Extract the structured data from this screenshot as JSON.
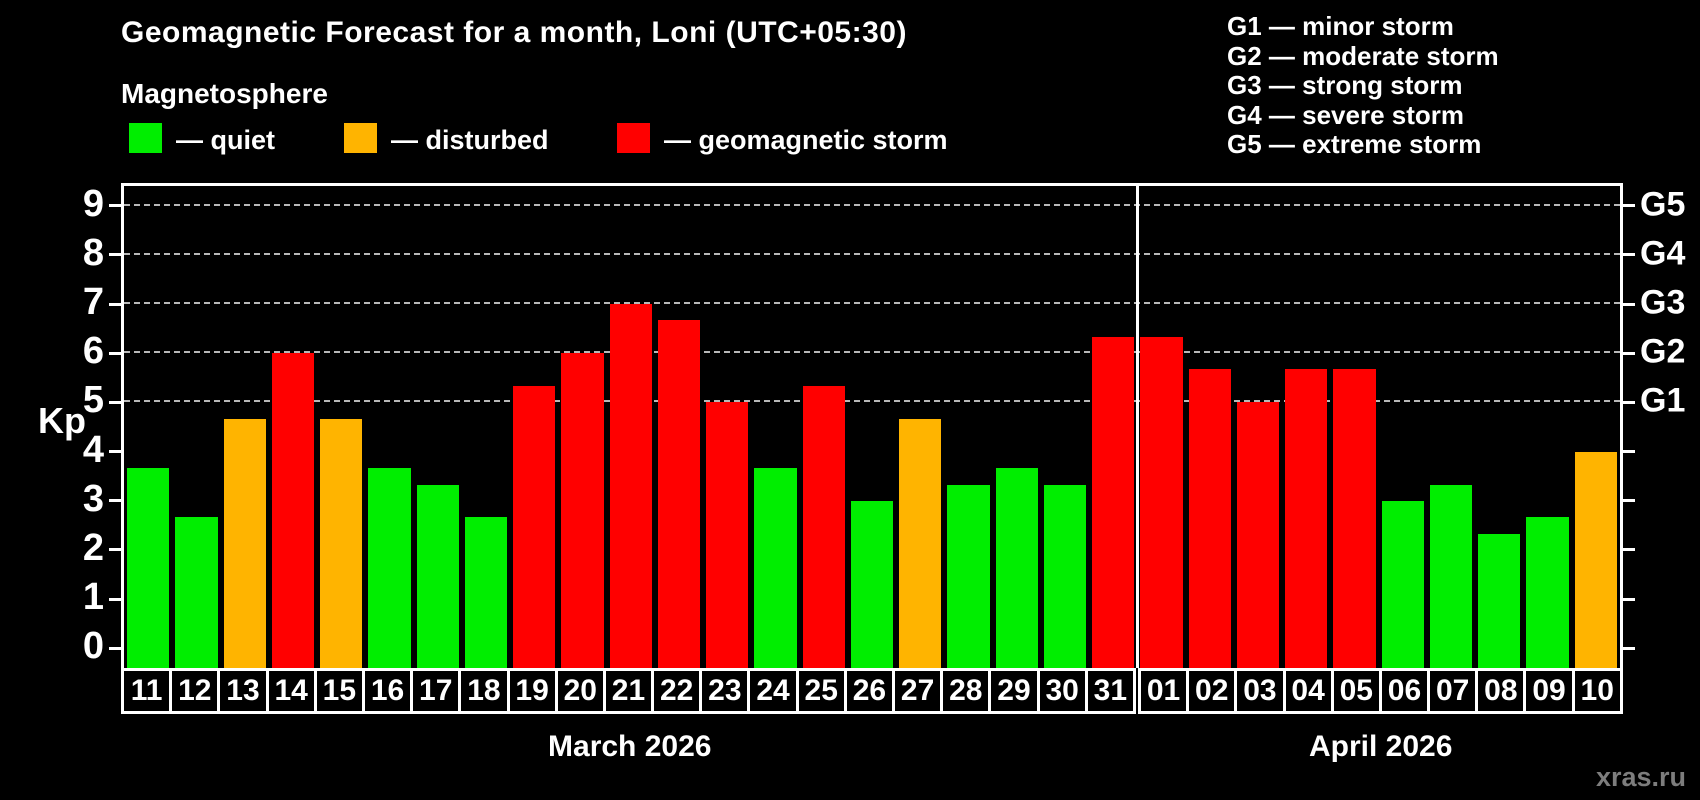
{
  "title": "Geomagnetic Forecast for a month, Loni (UTC+05:30)",
  "subtitle": "Magnetosphere",
  "legend": {
    "items": [
      {
        "key": "quiet",
        "label": "— quiet",
        "color": "#00ee00"
      },
      {
        "key": "disturbed",
        "label": "— disturbed",
        "color": "#ffb400"
      },
      {
        "key": "storm",
        "label": "— geomagnetic storm",
        "color": "#ff0000"
      }
    ],
    "colors": {
      "quiet": "#00ee00",
      "disturbed": "#ffb400",
      "storm": "#ff0000"
    }
  },
  "g_legend": [
    "G1 — minor storm",
    "G2 — moderate storm",
    "G3 — strong storm",
    "G4 — severe storm",
    "G5 — extreme storm"
  ],
  "y_axis": {
    "label": "Kp",
    "ticks": [
      0,
      1,
      2,
      3,
      4,
      5,
      6,
      7,
      8,
      9
    ],
    "right_labels": {
      "5": "G1",
      "6": "G2",
      "7": "G3",
      "8": "G4",
      "9": "G5"
    }
  },
  "x_axis": {
    "month_labels": [
      "March 2026",
      "April 2026"
    ]
  },
  "watermark": "xras.ru",
  "chart_data": {
    "type": "bar",
    "title": "Geomagnetic Forecast for a month, Loni (UTC+05:30)",
    "ylabel": "Kp",
    "ylim": [
      -0.4,
      9.4
    ],
    "gridlines": [
      5,
      6,
      7,
      8,
      9
    ],
    "grid_color": "#b8b8b8",
    "march_days_count": 21,
    "days": [
      {
        "month": "march",
        "label": "11",
        "kp": 3.67,
        "status": "quiet"
      },
      {
        "month": "march",
        "label": "12",
        "kp": 2.67,
        "status": "quiet"
      },
      {
        "month": "march",
        "label": "13",
        "kp": 4.67,
        "status": "disturbed"
      },
      {
        "month": "march",
        "label": "14",
        "kp": 6.0,
        "status": "storm"
      },
      {
        "month": "march",
        "label": "15",
        "kp": 4.67,
        "status": "disturbed"
      },
      {
        "month": "march",
        "label": "16",
        "kp": 3.67,
        "status": "quiet"
      },
      {
        "month": "march",
        "label": "17",
        "kp": 3.33,
        "status": "quiet"
      },
      {
        "month": "march",
        "label": "18",
        "kp": 2.67,
        "status": "quiet"
      },
      {
        "month": "march",
        "label": "19",
        "kp": 5.33,
        "status": "storm"
      },
      {
        "month": "march",
        "label": "20",
        "kp": 6.0,
        "status": "storm"
      },
      {
        "month": "march",
        "label": "21",
        "kp": 7.0,
        "status": "storm"
      },
      {
        "month": "march",
        "label": "22",
        "kp": 6.67,
        "status": "storm"
      },
      {
        "month": "march",
        "label": "23",
        "kp": 5.0,
        "status": "storm"
      },
      {
        "month": "march",
        "label": "24",
        "kp": 3.67,
        "status": "quiet"
      },
      {
        "month": "march",
        "label": "25",
        "kp": 5.33,
        "status": "storm"
      },
      {
        "month": "march",
        "label": "26",
        "kp": 3.0,
        "status": "quiet"
      },
      {
        "month": "march",
        "label": "27",
        "kp": 4.67,
        "status": "disturbed"
      },
      {
        "month": "march",
        "label": "28",
        "kp": 3.33,
        "status": "quiet"
      },
      {
        "month": "march",
        "label": "29",
        "kp": 3.67,
        "status": "quiet"
      },
      {
        "month": "march",
        "label": "30",
        "kp": 3.33,
        "status": "quiet"
      },
      {
        "month": "march",
        "label": "31",
        "kp": 6.33,
        "status": "storm"
      },
      {
        "month": "april",
        "label": "01",
        "kp": 6.33,
        "status": "storm"
      },
      {
        "month": "april",
        "label": "02",
        "kp": 5.67,
        "status": "storm"
      },
      {
        "month": "april",
        "label": "03",
        "kp": 5.0,
        "status": "storm"
      },
      {
        "month": "april",
        "label": "04",
        "kp": 5.67,
        "status": "storm"
      },
      {
        "month": "april",
        "label": "05",
        "kp": 5.67,
        "status": "storm"
      },
      {
        "month": "april",
        "label": "06",
        "kp": 3.0,
        "status": "quiet"
      },
      {
        "month": "april",
        "label": "07",
        "kp": 3.33,
        "status": "quiet"
      },
      {
        "month": "april",
        "label": "08",
        "kp": 2.33,
        "status": "quiet"
      },
      {
        "month": "april",
        "label": "09",
        "kp": 2.67,
        "status": "quiet"
      },
      {
        "month": "april",
        "label": "10",
        "kp": 4.0,
        "status": "disturbed"
      }
    ]
  }
}
